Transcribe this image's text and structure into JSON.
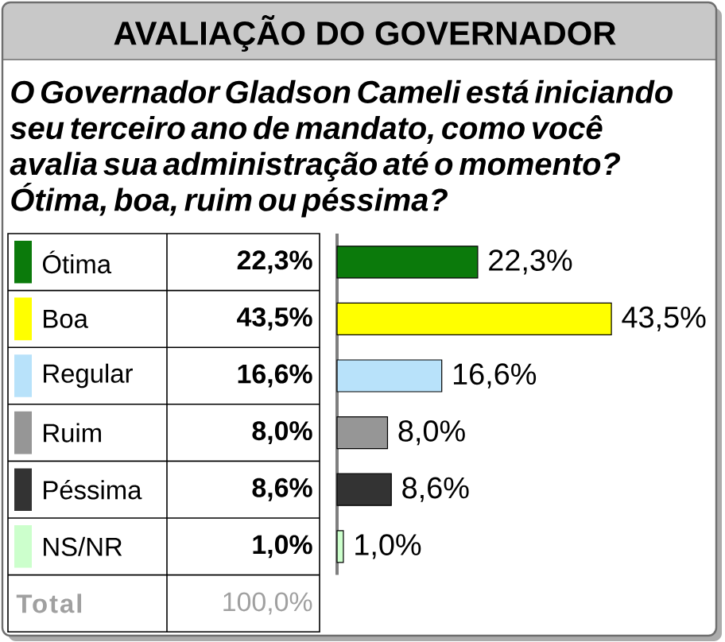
{
  "chart_data": {
    "type": "bar",
    "orientation": "horizontal",
    "title": "AVALIAÇÃO DO GOVERNADOR",
    "subtitle": "O Governador Gladson Cameli está iniciando seu terceiro ano de mandato, como você avalia sua administração até o momento? Ótima, boa, ruim ou péssima?",
    "categories": [
      "Ótima",
      "Boa",
      "Regular",
      "Ruim",
      "Péssima",
      "NS/NR"
    ],
    "values": [
      22.3,
      43.5,
      16.6,
      8.0,
      8.6,
      1.0
    ],
    "colors": [
      "#0b7a0b",
      "#ffff00",
      "#b8e2fa",
      "#969696",
      "#333333",
      "#ccffcc"
    ],
    "value_labels": [
      "22,3%",
      "43,5%",
      "16,6%",
      "8,0%",
      "8,6%",
      "1,0%"
    ],
    "annotations": [
      "Total",
      "100,0%"
    ],
    "xlim": [
      0,
      60
    ],
    "tick_labels": "y"
  }
}
